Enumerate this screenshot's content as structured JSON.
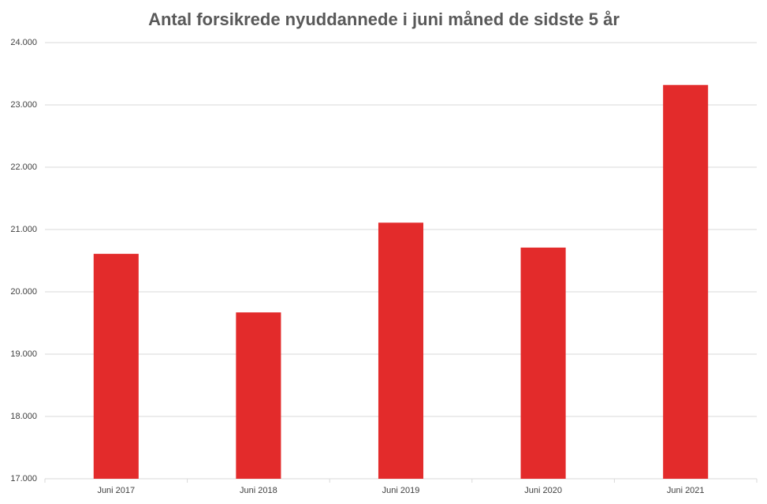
{
  "chart_data": {
    "type": "bar",
    "title": "Antal forsikrede nyuddannede i juni måned de sidste 5 år",
    "categories": [
      "Juni 2017",
      "Juni 2018",
      "Juni 2019",
      "Juni 2020",
      "Juni 2021"
    ],
    "values": [
      20610,
      19670,
      21110,
      20710,
      23320
    ],
    "color": "#e32b2b",
    "ylim": [
      17000,
      24000
    ],
    "yticks": [
      {
        "value": 17000,
        "label": "17.000"
      },
      {
        "value": 18000,
        "label": "18.000"
      },
      {
        "value": 19000,
        "label": "19.000"
      },
      {
        "value": 20000,
        "label": "20.000"
      },
      {
        "value": 21000,
        "label": "21.000"
      },
      {
        "value": 22000,
        "label": "22.000"
      },
      {
        "value": 23000,
        "label": "23.000"
      },
      {
        "value": 24000,
        "label": "24.000"
      }
    ],
    "grid": true
  }
}
